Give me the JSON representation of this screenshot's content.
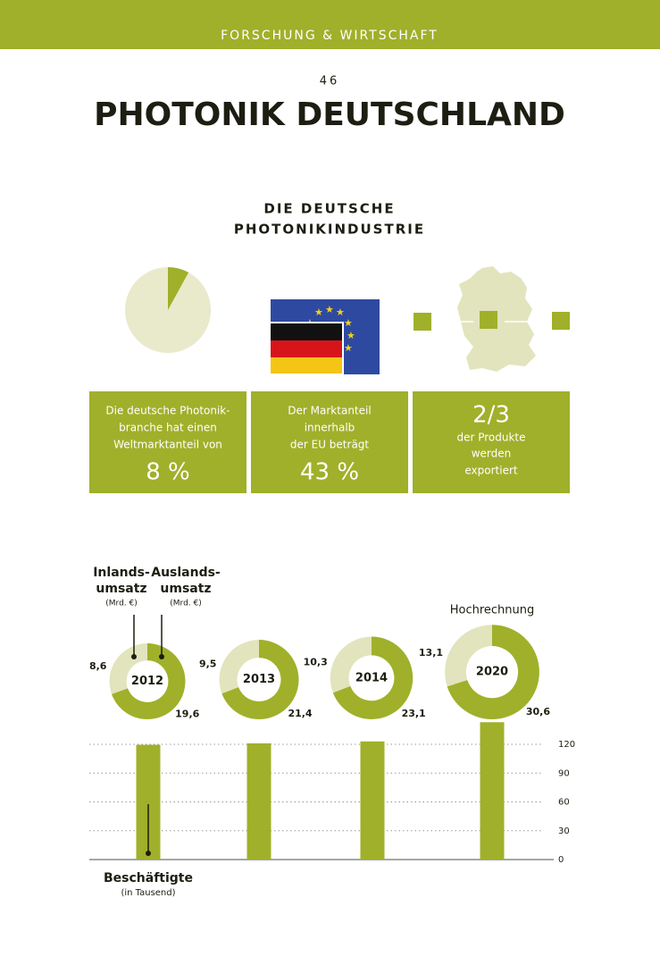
{
  "header": {
    "band": "FORSCHUNG & WIRTSCHAFT",
    "page_number": "46",
    "title": "PHOTONIK DEUTSCHLAND"
  },
  "section_title": [
    "DIE DEUTSCHE",
    "PHOTONIKINDUSTRIE"
  ],
  "facts": [
    {
      "lines": [
        "Die deutsche Photonik-",
        "branche hat einen",
        "Weltmarktanteil von"
      ]
    },
    {
      "lines": [
        "Der Marktanteil",
        "innerhalb",
        "der EU beträgt"
      ],
      "figure": "43 %"
    },
    {
      "figure": "2/3",
      "lines": [
        "der Produkte",
        "werden",
        "exportiert"
      ]
    }
  ],
  "chart_data": [
    {
      "type": "pie",
      "values": [
        8
      ],
      "value_labels": [
        "8 %"
      ],
      "color": "#a0b02a",
      "background": "#e9eacb"
    },
    {
      "type": "donut",
      "categories": [
        "2012",
        "2013",
        "2014",
        "2020"
      ],
      "annotation": "Hochrechnung",
      "series": [
        {
          "name": [
            "Inlands-",
            "umsatz"
          ],
          "unit": "(Mrd. €)",
          "color": "#e2e4bd",
          "values": [
            8.6,
            9.5,
            10.3,
            13.1
          ],
          "value_labels": [
            "8,6",
            "9,5",
            "10,3",
            "13,1"
          ]
        },
        {
          "name": [
            "Auslands-",
            "umsatz"
          ],
          "unit": "(Mrd. €)",
          "color": "#a0b02a",
          "values": [
            19.6,
            21.4,
            23.1,
            30.6
          ],
          "value_labels": [
            "19,6",
            "21,4",
            "23,1",
            "30,6"
          ]
        }
      ]
    },
    {
      "type": "bar",
      "label": [
        "Beschäftigte",
        "(in Tausend)"
      ],
      "categories": [
        null,
        null,
        null,
        null
      ],
      "values": [
        119.5,
        121,
        123,
        143
      ],
      "color": "#a0b02a",
      "ylim": [
        0,
        150
      ],
      "yticks": [
        0,
        30,
        60,
        90,
        120
      ],
      "grid": true
    }
  ]
}
